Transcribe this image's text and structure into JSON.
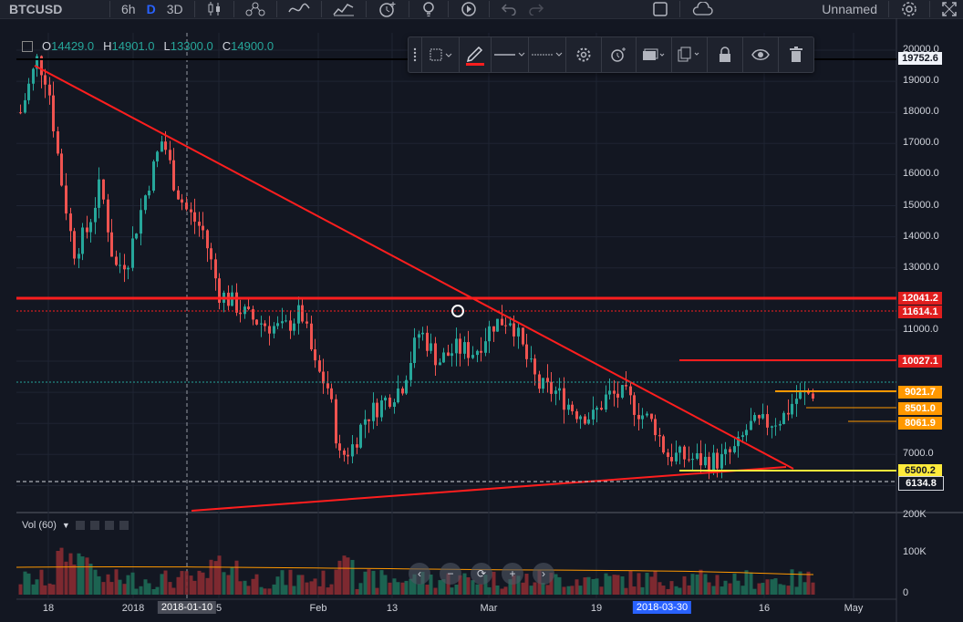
{
  "toolbar": {
    "symbol": "BTCUSD",
    "interval_6h": "6h",
    "interval_d": "D",
    "interval_3d": "3D",
    "layout_name": "Unnamed"
  },
  "legend": {
    "o_label": "O",
    "o_value": "14429.0",
    "h_label": "H",
    "h_value": "14901.0",
    "l_label": "L",
    "l_value": "13300.0",
    "c_label": "C",
    "c_value": "14900.0"
  },
  "volume": {
    "label": "Vol (60)"
  },
  "price_axis": {
    "ticks": [
      "20000.0",
      "19000.0",
      "18000.0",
      "17000.0",
      "16000.0",
      "15000.0",
      "14000.0",
      "13000.0",
      "12000.0",
      "11000.0",
      "10000.0",
      "9000.0",
      "8000.0",
      "7000.0",
      "6000.0"
    ],
    "vol_ticks": [
      "200K",
      "100K",
      "0"
    ]
  },
  "price_labels": {
    "high": "19752.6",
    "res1": "12041.2",
    "res2": "11614.1",
    "res3": "10027.1",
    "cur": "9021.7",
    "o1": "8501.0",
    "o2": "8061.9",
    "y1": "6500.2",
    "low": "6134.8"
  },
  "time_axis": {
    "labels": [
      "18",
      "2018",
      "5",
      "Feb",
      "13",
      "Mar",
      "19",
      "16",
      "May"
    ],
    "highlight1": "2018-01-10",
    "highlight2": "2018-03-30"
  },
  "colors": {
    "bg": "#131722",
    "up": "#26a69a",
    "down": "#ef5350",
    "trend": "#ff1e1e",
    "orange": "#ff9800",
    "yellow": "#ffeb3b"
  },
  "icons": {
    "drawbar": [
      "drag-handle-icon",
      "frame-icon",
      "pencil-icon",
      "line-style-icon",
      "line-dash-icon",
      "gear-icon",
      "alert-icon",
      "template-icon",
      "clone-icon",
      "lock-icon",
      "eye-icon",
      "trash-icon"
    ],
    "nav": [
      "chevron-left-icon",
      "zoom-out-icon",
      "reset-icon",
      "zoom-in-icon",
      "chevron-right-icon"
    ]
  }
}
